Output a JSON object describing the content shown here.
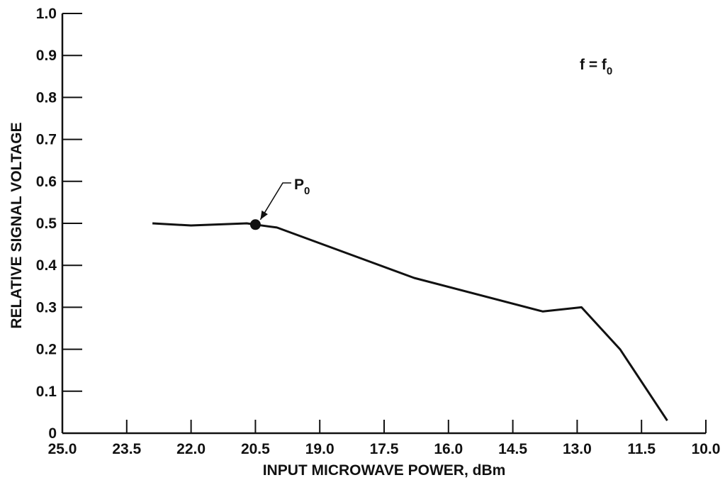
{
  "chart_data": {
    "type": "line",
    "xlabel": "INPUT MICROWAVE POWER, dBm",
    "ylabel": "RELATIVE SIGNAL VOLTAGE",
    "xlim": [
      25.0,
      10.0
    ],
    "ylim": [
      0,
      1.0
    ],
    "x_reversed": true,
    "grid": false,
    "x_ticks": [
      25.0,
      23.5,
      22.0,
      20.5,
      19.0,
      17.5,
      16.0,
      14.5,
      13.0,
      11.5,
      10.0
    ],
    "x_tick_labels": [
      "25.0",
      "23.5",
      "22.0",
      "20.5",
      "19.0",
      "17.5",
      "16.0",
      "14.5",
      "13.0",
      "11.5",
      "10.0"
    ],
    "y_ticks": [
      0,
      0.1,
      0.2,
      0.3,
      0.4,
      0.5,
      0.6,
      0.7,
      0.8,
      0.9,
      1.0
    ],
    "y_tick_labels": [
      "0",
      "0.1",
      "0.2",
      "0.3",
      "0.4",
      "0.5",
      "0.6",
      "0.7",
      "0.8",
      "0.9",
      "1.0"
    ],
    "series": [
      {
        "x": [
          22.9,
          22.0,
          20.7,
          20.5,
          20.0,
          16.8,
          13.8,
          12.9,
          12.0,
          10.9
        ],
        "y": [
          0.5,
          0.495,
          0.5,
          0.497,
          0.49,
          0.37,
          0.29,
          0.3,
          0.2,
          0.03
        ]
      }
    ],
    "annotations": [
      {
        "label": "P",
        "subscript": "0",
        "marker_x": 20.5,
        "marker_y": 0.497
      },
      {
        "text_main": "f = f",
        "text_sub": "0"
      }
    ]
  }
}
